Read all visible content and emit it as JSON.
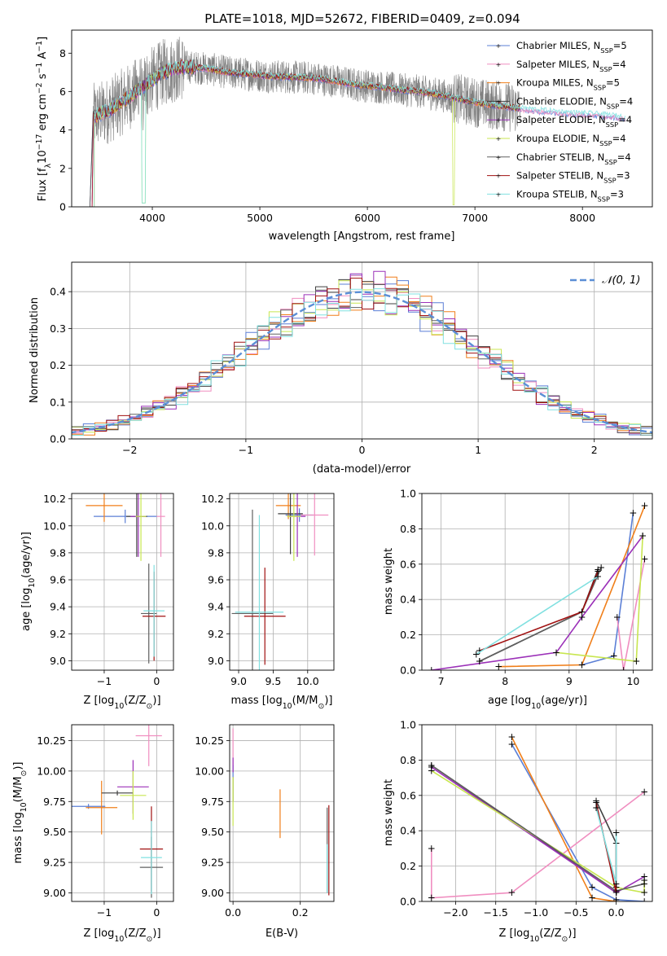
{
  "figure": {
    "title": "PLATE=1018, MJD=52672, FIBERID=0409, z=0.094"
  },
  "series": [
    {
      "name": "Chabrier MILES",
      "nssp": "5",
      "color": "#5b7fd6"
    },
    {
      "name": "Salpeter MILES",
      "nssp": "4",
      "color": "#f08ec0"
    },
    {
      "name": "Kroupa MILES",
      "nssp": "5",
      "color": "#f07f1a"
    },
    {
      "name": "Chabrier ELODIE",
      "nssp": "4",
      "color": "#404040"
    },
    {
      "name": "Salpeter ELODIE",
      "nssp": "4",
      "color": "#9b30b8"
    },
    {
      "name": "Kroupa ELODIE",
      "nssp": "4",
      "color": "#c8e650"
    },
    {
      "name": "Chabrier STELIB",
      "nssp": "4",
      "color": "#606060"
    },
    {
      "name": "Salpeter STELIB",
      "nssp": "3",
      "color": "#a01010"
    },
    {
      "name": "Kroupa STELIB",
      "nssp": "3",
      "color": "#80e0e0"
    }
  ],
  "chart_data": [
    {
      "id": "spectrum",
      "type": "line",
      "xlabel": "wavelength [Angstrom, rest frame]",
      "ylabel_main": "Flux [f",
      "ylabel_sub": "λ",
      "ylabel_rest": "10",
      "ylabel_exp": "−17",
      "ylabel_unit": " erg cm",
      "ylabel_unit_exp": "−2",
      "ylabel_s": " s",
      "ylabel_s_exp": "−1",
      "ylabel_A": " A",
      "ylabel_A_exp": "−1",
      "ylabel_end": "]",
      "xlim": [
        3250,
        8650
      ],
      "ylim": [
        0,
        9.2
      ],
      "xticks": [
        4000,
        5000,
        6000,
        7000,
        8000
      ],
      "yticks": [
        0,
        2,
        4,
        6,
        8
      ],
      "nssp_label": "N",
      "nssp_sub": "SSP",
      "data_color": "#808080",
      "continuum": [
        [
          3450,
          4.7
        ],
        [
          3550,
          4.9
        ],
        [
          3650,
          5.2
        ],
        [
          3800,
          5.8
        ],
        [
          3950,
          6.4
        ],
        [
          4100,
          7.0
        ],
        [
          4300,
          7.3
        ],
        [
          4500,
          7.2
        ],
        [
          4700,
          7.0
        ],
        [
          4900,
          6.9
        ],
        [
          5100,
          6.8
        ],
        [
          5300,
          6.75
        ],
        [
          5500,
          6.7
        ],
        [
          5700,
          6.55
        ],
        [
          5900,
          6.35
        ],
        [
          6100,
          6.25
        ],
        [
          6300,
          6.1
        ],
        [
          6500,
          6.0
        ],
        [
          6700,
          5.8
        ],
        [
          6900,
          5.55
        ],
        [
          7100,
          5.35
        ],
        [
          7300,
          5.2
        ],
        [
          7500,
          5.05
        ],
        [
          7700,
          4.95
        ],
        [
          7900,
          4.85
        ],
        [
          8100,
          4.8
        ],
        [
          8300,
          4.7
        ],
        [
          8400,
          4.6
        ]
      ]
    },
    {
      "id": "residuals",
      "type": "histogram",
      "xlabel": "(data-model)/error",
      "ylabel": "Normed distribution",
      "xlim": [
        -2.5,
        2.5
      ],
      "ylim": [
        0,
        0.48
      ],
      "xticks": [
        -2,
        -1,
        0,
        1,
        2
      ],
      "yticks": [
        0,
        0.1,
        0.2,
        0.3,
        0.4
      ],
      "ref_label": "𝒩(0, 1)",
      "ref_color": "#5b8fd6",
      "bin_width": 0.1
    },
    {
      "id": "age_vs_z",
      "type": "errorbar",
      "xlabel": "Z [log",
      "xlabel_sub": "10",
      "xlabel_rest": "(Z/Z",
      "xlabel_odot": "⊙",
      "xlabel_end": ")]",
      "ylabel": "age  [log",
      "ylabel_sub": "10",
      "ylabel_rest": "(age/yr)]",
      "xlim": [
        -1.62,
        0.32
      ],
      "ylim": [
        8.93,
        10.24
      ],
      "xticks": [
        -1,
        0
      ],
      "yticks": [
        9.0,
        9.2,
        9.4,
        9.6,
        9.8,
        10.0,
        10.2
      ],
      "points": [
        {
          "s": 0,
          "x": -0.6,
          "y": 10.07,
          "xe": 0.6,
          "ye": 0.05
        },
        {
          "s": 1,
          "x": 0.08,
          "y": 10.07,
          "xe": 0.08,
          "ye": 0.3
        },
        {
          "s": 2,
          "x": -1.0,
          "y": 10.15,
          "xe": 0.35,
          "ye": 0.12
        },
        {
          "s": 3,
          "x": -0.38,
          "y": 10.07,
          "xe": 0.2,
          "ye": 0.3
        },
        {
          "s": 4,
          "x": -0.35,
          "y": 10.07,
          "xe": 0.15,
          "ye": 0.3
        },
        {
          "s": 5,
          "x": -0.3,
          "y": 10.07,
          "xe": 0.1,
          "ye": 0.33
        },
        {
          "s": 6,
          "x": -0.15,
          "y": 9.35,
          "xe": 0.15,
          "ye": 0.37
        },
        {
          "s": 7,
          "x": -0.05,
          "y": 9.33,
          "xe": 0.22,
          "ye": 0.33
        },
        {
          "s": 8,
          "x": -0.05,
          "y": 9.37,
          "xe": 0.2,
          "ye": 0.34
        }
      ]
    },
    {
      "id": "age_vs_mass",
      "type": "errorbar",
      "xlabel": "mass [log",
      "xlabel_sub": "10",
      "xlabel_rest": "(M/M",
      "xlabel_odot": "⊙",
      "xlabel_end": ")]",
      "xlim": [
        8.87,
        10.38
      ],
      "ylim": [
        8.93,
        10.24
      ],
      "xticks": [
        9.0,
        9.5,
        10.0
      ],
      "yticks": [
        9.0,
        9.2,
        9.4,
        9.6,
        9.8,
        10.0,
        10.2
      ],
      "points": [
        {
          "s": 0,
          "x": 9.88,
          "y": 10.08,
          "xe": 0.2,
          "ye": 0.05
        },
        {
          "s": 1,
          "x": 10.1,
          "y": 10.08,
          "xe": 0.2,
          "ye": 0.3
        },
        {
          "s": 2,
          "x": 9.72,
          "y": 10.15,
          "xe": 0.18,
          "ye": 0.1
        },
        {
          "s": 3,
          "x": 9.75,
          "y": 10.09,
          "xe": 0.18,
          "ye": 0.3
        },
        {
          "s": 4,
          "x": 9.85,
          "y": 10.07,
          "xe": 0.12,
          "ye": 0.3
        },
        {
          "s": 5,
          "x": 9.8,
          "y": 10.07,
          "xe": 0.1,
          "ye": 0.33
        },
        {
          "s": 6,
          "x": 9.2,
          "y": 9.35,
          "xe": 0.3,
          "ye": 0.77
        },
        {
          "s": 7,
          "x": 9.38,
          "y": 9.33,
          "xe": 0.3,
          "ye": 0.36
        },
        {
          "s": 8,
          "x": 9.3,
          "y": 9.36,
          "xe": 0.35,
          "ye": 0.72
        }
      ]
    },
    {
      "id": "weight_vs_age",
      "type": "line",
      "xlabel": "age  [log",
      "xlabel_sub": "10",
      "xlabel_rest": "(age/yr)]",
      "ylabel": "mass weight",
      "xlim": [
        6.7,
        10.3
      ],
      "ylim": [
        0,
        1
      ],
      "xticks": [
        7,
        8,
        9,
        10
      ],
      "yticks": [
        0,
        0.2,
        0.4,
        0.6,
        0.8,
        1.0
      ],
      "lines": [
        {
          "s": 0,
          "pts": [
            [
              9.2,
              0.03
            ],
            [
              9.7,
              0.08
            ],
            [
              10.0,
              0.89
            ]
          ]
        },
        {
          "s": 1,
          "pts": [
            [
              9.75,
              0.3
            ],
            [
              9.85,
              0.0
            ],
            [
              10.18,
              0.63
            ]
          ]
        },
        {
          "s": 2,
          "pts": [
            [
              7.9,
              0.02
            ],
            [
              9.2,
              0.03
            ],
            [
              10.18,
              0.93
            ]
          ]
        },
        {
          "s": 3,
          "pts": [
            [
              7.6,
              0.05
            ],
            [
              9.2,
              0.33
            ],
            [
              9.45,
              0.57
            ]
          ]
        },
        {
          "s": 4,
          "pts": [
            [
              6.85,
              0.0
            ],
            [
              8.8,
              0.1
            ],
            [
              9.2,
              0.3
            ],
            [
              10.15,
              0.76
            ]
          ]
        },
        {
          "s": 5,
          "pts": [
            [
              8.8,
              0.1
            ],
            [
              10.05,
              0.05
            ],
            [
              10.15,
              0.76
            ]
          ]
        },
        {
          "s": 6,
          "pts": [
            [
              7.6,
              0.05
            ],
            [
              9.2,
              0.33
            ],
            [
              9.5,
              0.58
            ]
          ]
        },
        {
          "s": 7,
          "pts": [
            [
              7.6,
              0.11
            ],
            [
              9.2,
              0.33
            ],
            [
              9.45,
              0.56
            ]
          ]
        },
        {
          "s": 8,
          "pts": [
            [
              7.55,
              0.09
            ],
            [
              9.45,
              0.53
            ]
          ]
        }
      ]
    },
    {
      "id": "mass_vs_z",
      "type": "errorbar",
      "xlabel": "Z [log",
      "xlabel_sub": "10",
      "xlabel_rest": "(Z/Z",
      "xlabel_odot": "⊙",
      "xlabel_end": ")]",
      "ylabel": "mass [log",
      "ylabel_sub": "10",
      "ylabel_rest": "(M/M",
      "ylabel_odot": "⊙",
      "ylabel_end": ")]",
      "xlim": [
        -1.62,
        0.32
      ],
      "ylim": [
        8.93,
        10.38
      ],
      "xticks": [
        -1,
        0
      ],
      "yticks": [
        9.0,
        9.25,
        9.5,
        9.75,
        10.0,
        10.25
      ],
      "points": [
        {
          "s": 0,
          "x": -1.3,
          "y": 9.71,
          "xe": 0.32,
          "ye": 0.02
        },
        {
          "s": 1,
          "x": -0.15,
          "y": 10.29,
          "xe": 0.25,
          "ye": 0.25
        },
        {
          "s": 2,
          "x": -1.05,
          "y": 9.7,
          "xe": 0.3,
          "ye": 0.22
        },
        {
          "s": 3,
          "x": -0.75,
          "y": 9.82,
          "xe": 0.3,
          "ye": 0.02
        },
        {
          "s": 4,
          "x": -0.45,
          "y": 9.87,
          "xe": 0.3,
          "ye": 0.22
        },
        {
          "s": 5,
          "x": -0.45,
          "y": 9.8,
          "xe": 0.25,
          "ye": 0.2
        },
        {
          "s": 6,
          "x": -0.1,
          "y": 9.21,
          "xe": 0.22,
          "ye": 0.25
        },
        {
          "s": 7,
          "x": -0.1,
          "y": 9.36,
          "xe": 0.22,
          "ye": 0.35
        },
        {
          "s": 8,
          "x": -0.1,
          "y": 9.29,
          "xe": 0.2,
          "ye": 0.3
        }
      ]
    },
    {
      "id": "mass_vs_ebv",
      "type": "errorbar",
      "xlabel": "E(B-V)",
      "xlim": [
        -0.01,
        0.3
      ],
      "ylim": [
        8.93,
        10.38
      ],
      "xticks": [
        0.0,
        0.2
      ],
      "yticks": [
        9.0,
        9.25,
        9.5,
        9.75,
        10.0,
        10.25
      ],
      "points": [
        {
          "s": 0,
          "x": 0.0,
          "y": 10.0,
          "xe": 0.0,
          "ye": 0.05
        },
        {
          "s": 1,
          "x": 0.0,
          "y": 10.2,
          "xe": 0.0,
          "ye": 0.15
        },
        {
          "s": 2,
          "x": 0.14,
          "y": 9.65,
          "xe": 0.0,
          "ye": 0.2
        },
        {
          "s": 3,
          "x": 0.0,
          "y": 9.85,
          "xe": 0.0,
          "ye": 0.1
        },
        {
          "s": 4,
          "x": 0.0,
          "y": 10.05,
          "xe": 0.0,
          "ye": 0.06
        },
        {
          "s": 5,
          "x": 0.0,
          "y": 9.75,
          "xe": 0.0,
          "ye": 0.2
        },
        {
          "s": 6,
          "x": 0.28,
          "y": 9.35,
          "xe": 0.0,
          "ye": 0.35
        },
        {
          "s": 7,
          "x": 0.285,
          "y": 9.35,
          "xe": 0.0,
          "ye": 0.37
        },
        {
          "s": 8,
          "x": 0.28,
          "y": 9.2,
          "xe": 0.0,
          "ye": 0.2
        }
      ]
    },
    {
      "id": "weight_vs_z",
      "type": "line",
      "xlabel": "Z [log",
      "xlabel_sub": "10",
      "xlabel_rest": "(Z/Z",
      "xlabel_odot": "⊙",
      "xlabel_end": ")]",
      "ylabel": "mass weight",
      "xlim": [
        -2.42,
        0.45
      ],
      "ylim": [
        0,
        1
      ],
      "xticks": [
        -2.0,
        -1.5,
        -1.0,
        -0.5,
        0.0
      ],
      "yticks": [
        0,
        0.2,
        0.4,
        0.6,
        0.8,
        1.0
      ],
      "lines": [
        {
          "s": 0,
          "pts": [
            [
              -1.3,
              0.89
            ],
            [
              -0.3,
              0.08
            ],
            [
              0.0,
              0.01
            ],
            [
              0.35,
              0.0
            ]
          ]
        },
        {
          "s": 1,
          "pts": [
            [
              -2.3,
              0.3
            ],
            [
              -2.3,
              0.02
            ],
            [
              -1.3,
              0.05
            ],
            [
              0.35,
              0.62
            ]
          ]
        },
        {
          "s": 2,
          "pts": [
            [
              -1.3,
              0.93
            ],
            [
              -0.3,
              0.02
            ],
            [
              0.0,
              0.0
            ]
          ]
        },
        {
          "s": 3,
          "pts": [
            [
              -2.3,
              0.77
            ],
            [
              0.0,
              0.05
            ],
            [
              0.0,
              0.33
            ],
            [
              -0.25,
              0.57
            ]
          ]
        },
        {
          "s": 4,
          "pts": [
            [
              -2.3,
              0.76
            ],
            [
              0.0,
              0.05
            ],
            [
              0.35,
              0.14
            ]
          ]
        },
        {
          "s": 5,
          "pts": [
            [
              -2.3,
              0.74
            ],
            [
              0.0,
              0.08
            ],
            [
              0.35,
              0.05
            ],
            [
              0.35,
              0.12
            ]
          ]
        },
        {
          "s": 6,
          "pts": [
            [
              -2.3,
              0.77
            ],
            [
              0.0,
              0.06
            ],
            [
              0.35,
              0.1
            ]
          ]
        },
        {
          "s": 7,
          "pts": [
            [
              -0.25,
              0.56
            ],
            [
              0.0,
              0.05
            ],
            [
              0.0,
              0.33
            ]
          ]
        },
        {
          "s": 8,
          "pts": [
            [
              -0.25,
              0.53
            ],
            [
              0.0,
              0.1
            ],
            [
              0.0,
              0.39
            ]
          ]
        }
      ]
    }
  ]
}
